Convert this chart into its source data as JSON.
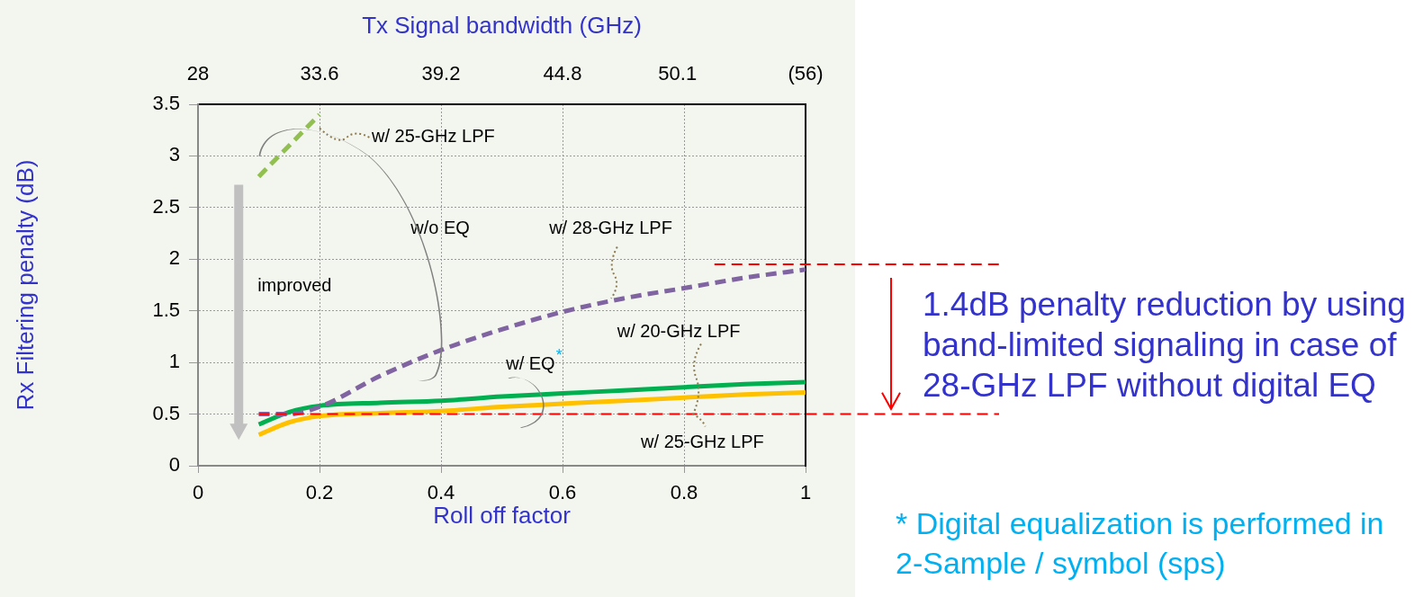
{
  "chart_data": {
    "type": "line",
    "xlabel": "Roll off factor",
    "ylabel": "Rx Filtering penalty (dB)",
    "x2label": "Tx Signal bandwidth (GHz)",
    "xlim": [
      0,
      1
    ],
    "xticks": [
      0,
      0.2,
      0.4,
      0.6,
      0.8,
      1
    ],
    "x2lim": [
      28,
      56
    ],
    "x2ticks": [
      28,
      33.6,
      39.2,
      44.8,
      50.1,
      {
        "value": 56,
        "label": "(56)"
      }
    ],
    "ylim": [
      0,
      3.5
    ],
    "yticks": [
      0,
      0.5,
      1,
      1.5,
      2,
      2.5,
      3,
      3.5
    ],
    "grid": true,
    "legend": false,
    "marker": "none",
    "series": [
      {
        "color": "#92c050",
        "line_style": "dashed",
        "x": [
          0.1,
          0.2
        ],
        "values": [
          2.8,
          3.4
        ]
      },
      {
        "color": "#8064a2",
        "line_style": "dashed",
        "x": [
          0.1,
          0.15,
          0.2,
          0.3,
          0.4,
          0.5,
          0.6,
          0.7,
          0.8,
          0.9,
          1
        ],
        "values": [
          0.5,
          0.5,
          0.57,
          0.87,
          1.12,
          1.32,
          1.49,
          1.62,
          1.72,
          1.82,
          1.9
        ]
      },
      {
        "color": "#00b050",
        "line_style": "solid",
        "x": [
          0.1,
          0.15,
          0.2,
          0.3,
          0.4,
          0.5,
          0.6,
          0.7,
          0.8,
          0.9,
          1
        ],
        "values": [
          0.4,
          0.52,
          0.58,
          0.61,
          0.63,
          0.67,
          0.7,
          0.73,
          0.76,
          0.79,
          0.81
        ]
      },
      {
        "color": "#ffc000",
        "line_style": "solid",
        "x": [
          0.1,
          0.15,
          0.2,
          0.3,
          0.4,
          0.5,
          0.6,
          0.7,
          0.8,
          0.9,
          1
        ],
        "values": [
          0.3,
          0.42,
          0.48,
          0.51,
          0.53,
          0.57,
          0.6,
          0.63,
          0.66,
          0.69,
          0.71
        ]
      }
    ],
    "ref_lines": [
      {
        "axis": "y",
        "value": 1.95,
        "color": "#ff0000",
        "line_style": "dashed"
      },
      {
        "axis": "y",
        "value": 0.5,
        "color": "#ff0000",
        "line_style": "dashed"
      }
    ],
    "annotations": [
      "w/ 25-GHz LPF",
      "w/o EQ",
      {
        "text": "w/ 28-GHz LPF",
        "x": 0.68,
        "y": 1.62
      },
      "improved",
      "w/ EQ$^{*}$",
      "w/ 20-GHz LPF",
      "w/ 25-GHz LPF",
      "1.4dB penalty reduction by using band-limited signaling in case of 28-GHz LPF without digital EQ",
      "* Digital equalization is performed in 2-Sample / symbol (sps)"
    ]
  }
}
